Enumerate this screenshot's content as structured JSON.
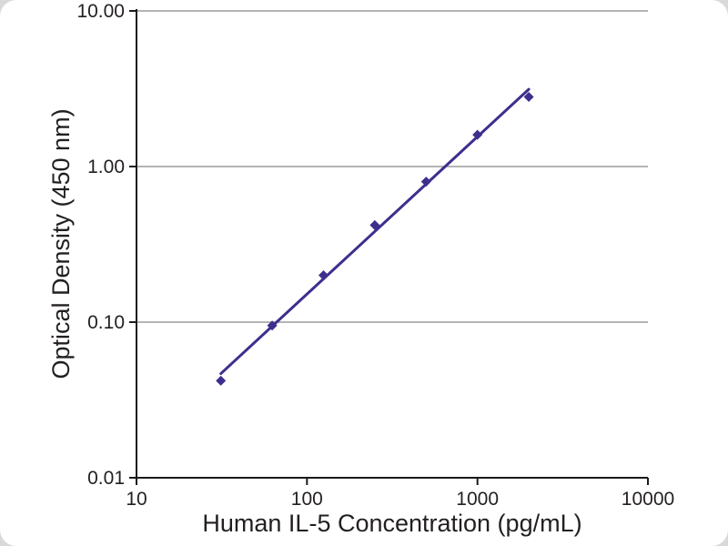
{
  "chart_data": {
    "type": "scatter",
    "title": "",
    "xlabel": "Human IL-5 Concentration (pg/mL)",
    "ylabel": "Optical Density (450 nm)",
    "x_scale": "log",
    "y_scale": "log",
    "xlim": [
      10,
      10000
    ],
    "ylim": [
      0.01,
      10
    ],
    "x": [
      31.25,
      62.5,
      125,
      250,
      500,
      1000,
      2000
    ],
    "y": [
      0.042,
      0.095,
      0.2,
      0.42,
      0.8,
      1.6,
      2.8
    ],
    "x_ticks": [
      10,
      100,
      1000,
      10000
    ],
    "x_tick_labels": [
      "10",
      "100",
      "1000",
      "10000"
    ],
    "y_ticks": [
      0.01,
      0.1,
      1,
      10
    ],
    "y_tick_labels": [
      "0.01",
      "0.10",
      "1.00",
      "10.00"
    ],
    "marker": "diamond",
    "trend_line": true,
    "grid": "horizontal",
    "legend": "none",
    "colors": {
      "series": "#3d2f8e",
      "grid": "#9b9b9b",
      "axis": "#1a1a1a",
      "text": "#231f20"
    }
  }
}
